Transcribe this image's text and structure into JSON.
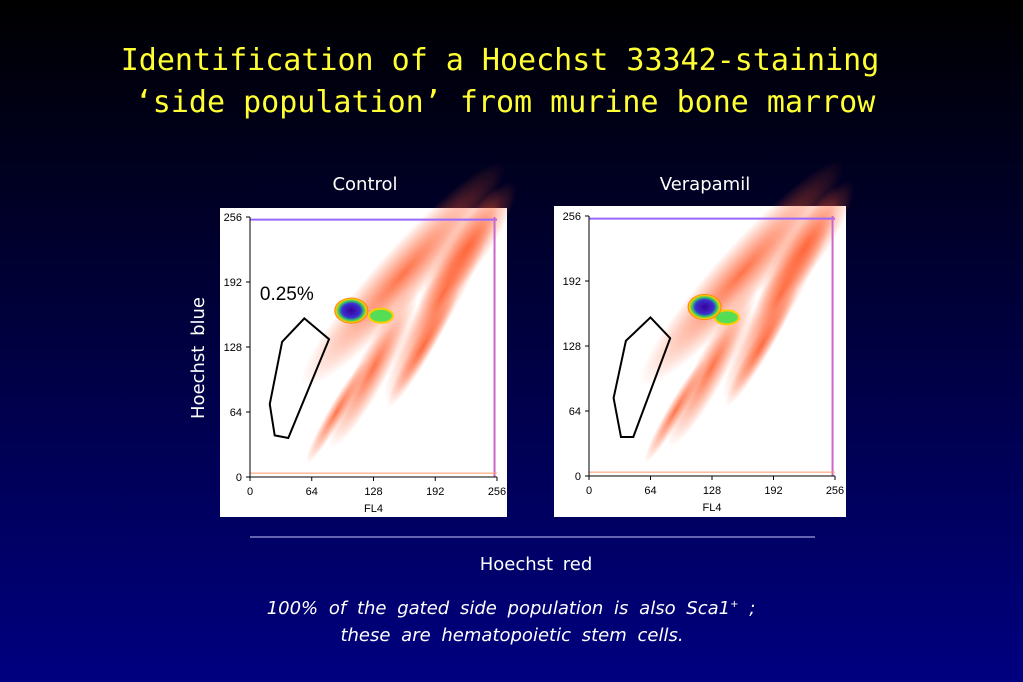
{
  "title": [
    "Identification of a Hoechst 33342-staining",
    "‘side population’ from murine bone marrow"
  ],
  "panels": [
    {
      "label": "Control",
      "gate_label": "0.25%",
      "xticks": [
        0,
        64,
        128,
        192,
        256
      ],
      "yticks": [
        0,
        64,
        128,
        192,
        256
      ],
      "xlabel": "FL4"
    },
    {
      "label": "Verapamil",
      "xticks": [
        0,
        64,
        128,
        192,
        256
      ],
      "yticks": [
        0,
        64,
        128,
        192,
        256
      ],
      "xlabel": "FL4"
    }
  ],
  "y_axis_label": "Hoechst blue",
  "x_axis_label": "Hoechst red",
  "caption": {
    "line1": "100% of the gated side population is also Sca1",
    "superscript": "+",
    "line1_end": " ;",
    "line2": "these are hematopoietic stem cells."
  }
}
